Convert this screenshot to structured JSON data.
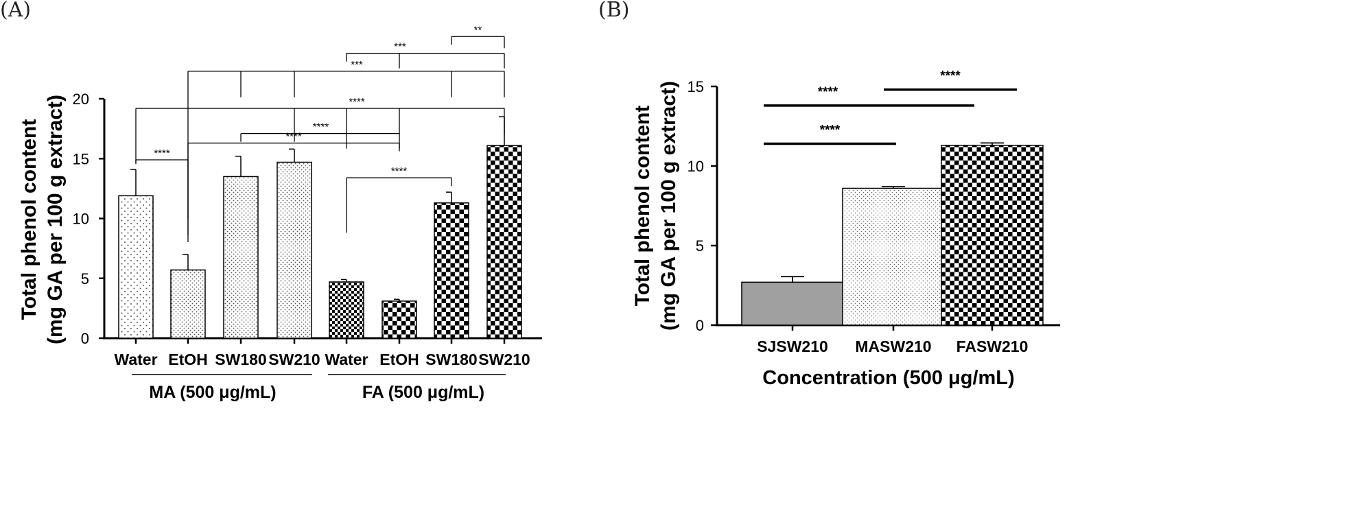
{
  "chart_data": [
    {
      "panel": "(A)",
      "type": "bar",
      "ylabel_line1": "Total phenol content",
      "ylabel_line2": "(mg GA per 100 g extract)",
      "ylim": [
        0,
        20
      ],
      "yticks": [
        "0",
        "5",
        "10",
        "15",
        "20"
      ],
      "categories": [
        "Water",
        "EtOH",
        "SW180",
        "SW210",
        "Water",
        "EtOH",
        "SW180",
        "SW210"
      ],
      "groups": [
        {
          "label": "MA (500 μg/mL)",
          "indices": [
            0,
            1,
            2,
            3
          ]
        },
        {
          "label": "FA (500 μg/mL)",
          "indices": [
            4,
            5,
            6,
            7
          ]
        }
      ],
      "values": [
        11.9,
        5.7,
        13.5,
        14.7,
        4.7,
        3.1,
        11.3,
        16.1
      ],
      "errors": [
        2.2,
        1.3,
        1.7,
        1.1,
        0.2,
        0.15,
        0.9,
        2.4
      ],
      "patterns": [
        "dots-sparse",
        "dots-dense",
        "dots-dense",
        "dots-dense",
        "check-small",
        "check",
        "check",
        "check"
      ],
      "significance": [
        {
          "label": "****",
          "type": "pair",
          "a": 0,
          "b": 1,
          "y": 14.9
        },
        {
          "label": "****",
          "type": "pair",
          "a": 6,
          "b": 4,
          "y": 13.4
        },
        {
          "label": "****",
          "type": "pair",
          "a": 5,
          "b": 1,
          "y": 16.3
        },
        {
          "label": "****",
          "type": "bridge",
          "left": [
            2,
            3
          ],
          "right": [
            4,
            5
          ],
          "y": 17.1
        },
        {
          "label": "****",
          "type": "bridge",
          "left": [
            0
          ],
          "right": [
            3,
            4,
            5,
            7
          ],
          "y": 19.2
        },
        {
          "label": "***",
          "type": "bridge",
          "left": [
            1
          ],
          "right": [
            2,
            3,
            6,
            7
          ],
          "y": 22.3
        },
        {
          "label": "***",
          "type": "bridge",
          "left": [
            4
          ],
          "right": [
            5,
            7
          ],
          "y": 23.8
        },
        {
          "label": "**",
          "type": "pair",
          "a": 6,
          "b": 7,
          "y": 25.2
        }
      ]
    },
    {
      "panel": "(B)",
      "type": "bar",
      "ylabel_line1": "Total phenol content",
      "ylabel_line2": "(mg GA per 100 g extract)",
      "xlabel": "Concentration (500 μg/mL)",
      "ylim": [
        0,
        15
      ],
      "yticks": [
        "0",
        "5",
        "10",
        "15"
      ],
      "categories": [
        "SJSW210",
        "MASW210",
        "FASW210"
      ],
      "values": [
        2.7,
        8.6,
        11.3
      ],
      "errors": [
        0.35,
        0.1,
        0.15
      ],
      "colors": [
        "#a0a0a0",
        "#ffffff",
        "#ffffff"
      ],
      "patterns": [
        "solid",
        "dots",
        "check"
      ],
      "significance": [
        {
          "label": "****",
          "a": 0,
          "b": 1,
          "y": 11.4
        },
        {
          "label": "****",
          "a": 0,
          "b": 2,
          "y": 13.8
        },
        {
          "label": "****",
          "a": 1,
          "b": 2,
          "y": 14.8
        }
      ]
    }
  ]
}
